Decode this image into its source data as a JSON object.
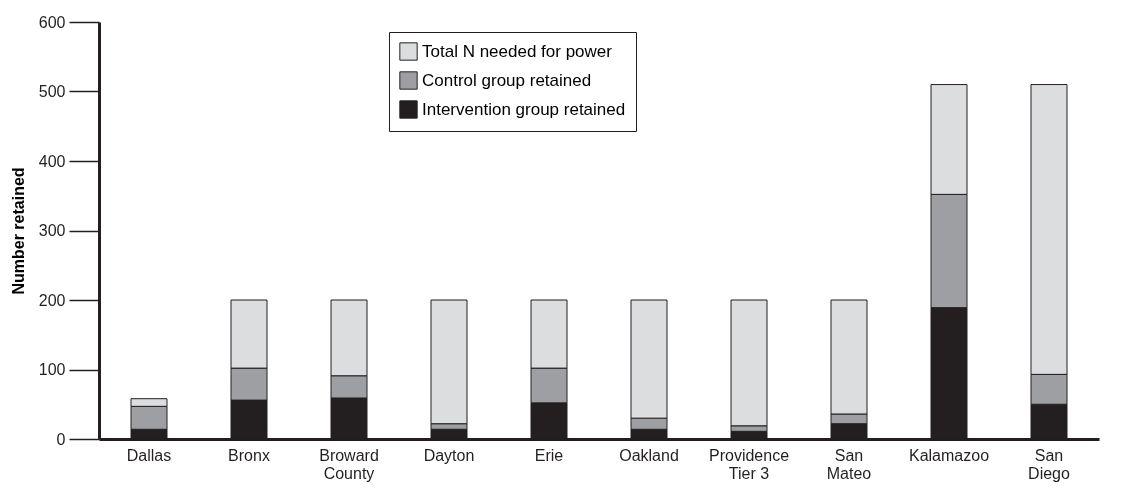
{
  "chart_data": {
    "type": "bar",
    "stacked": true,
    "ylabel": "Number retained",
    "categories": [
      "Dallas",
      "Bronx",
      "Broward County",
      "Dayton",
      "Erie",
      "Oakland",
      "Providence Tier 3",
      "San Mateo",
      "Kalamazoo",
      "San Diego"
    ],
    "series": [
      {
        "name": "Intervention group retained",
        "color": "#231f20",
        "values": [
          14,
          56,
          59,
          14,
          52,
          14,
          11,
          22,
          189,
          50
        ]
      },
      {
        "name": "Control group retained",
        "color": "#9d9fa2",
        "values": [
          33,
          46,
          32,
          8,
          50,
          16,
          8,
          14,
          163,
          43
        ]
      },
      {
        "name": "Total N needed for power",
        "color": "#dcdddf",
        "values": [
          11,
          98,
          109,
          178,
          98,
          170,
          181,
          164,
          158,
          417
        ]
      }
    ],
    "ylim": [
      0,
      600
    ],
    "yticks": [
      0,
      100,
      200,
      300,
      400,
      500,
      600
    ],
    "grid": false,
    "legend": "top"
  }
}
